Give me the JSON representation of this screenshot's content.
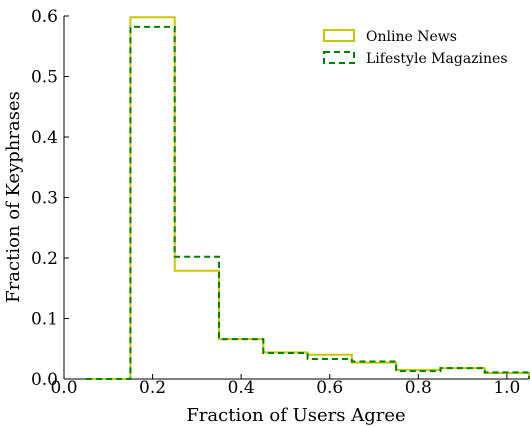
{
  "chart_data": {
    "type": "histogram-step",
    "xlabel": "Fraction of Users Agree",
    "ylabel": "Fraction of Keyphrases",
    "xlim": [
      0.0,
      1.05
    ],
    "ylim": [
      0.0,
      0.6
    ],
    "xticks": [
      "0.0",
      "0.2",
      "0.4",
      "0.6",
      "0.8",
      "1.0"
    ],
    "yticks": [
      "0.0",
      "0.1",
      "0.2",
      "0.3",
      "0.4",
      "0.5",
      "0.6"
    ],
    "legend_position": "top-right",
    "grid": false,
    "bin_edges": [
      0.05,
      0.15,
      0.25,
      0.35,
      0.45,
      0.55,
      0.65,
      0.75,
      0.85,
      0.95,
      1.05
    ],
    "series": [
      {
        "name": "Online News",
        "color": "#c8c800",
        "style": "solid",
        "values": [
          0.0,
          0.598,
          0.179,
          0.066,
          0.044,
          0.04,
          0.027,
          0.015,
          0.018,
          0.01
        ]
      },
      {
        "name": "Lifestyle Magazines",
        "color": "#008000",
        "style": "dashed",
        "values": [
          0.0,
          0.582,
          0.202,
          0.066,
          0.043,
          0.033,
          0.029,
          0.013,
          0.018,
          0.011
        ]
      }
    ]
  }
}
